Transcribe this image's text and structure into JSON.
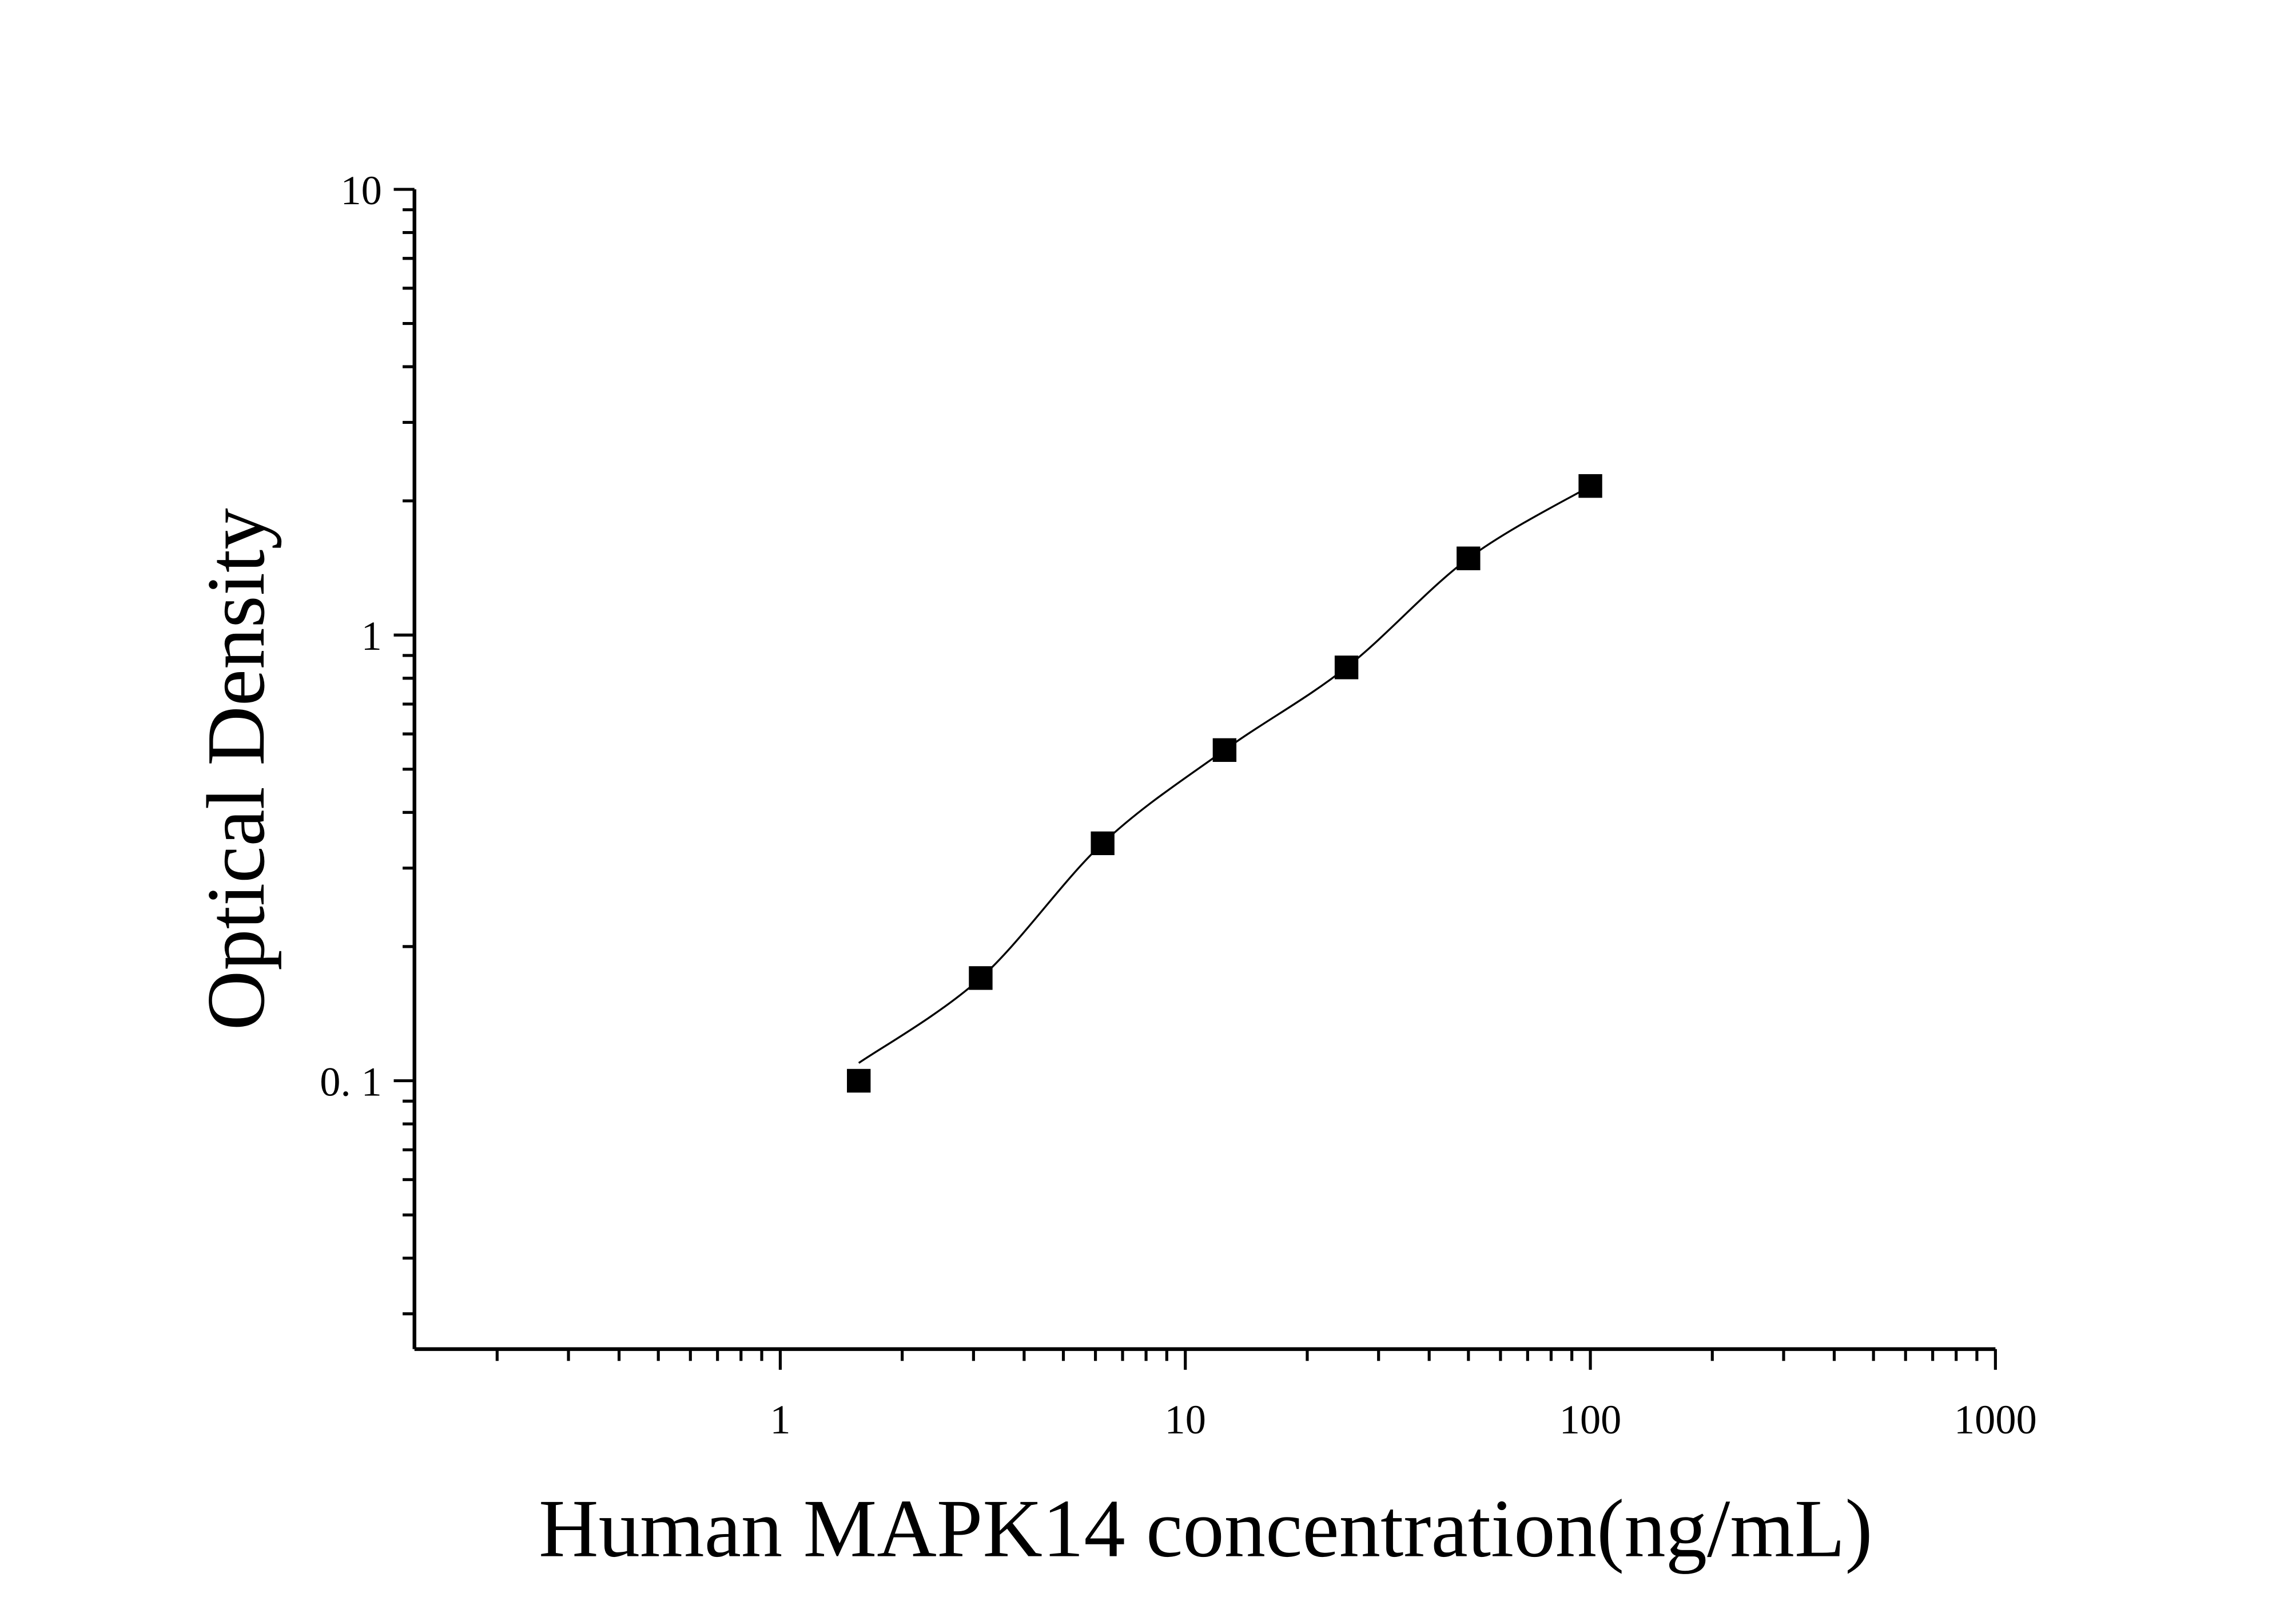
{
  "chart_data": {
    "type": "scatter",
    "title": "",
    "xlabel": "Human MAPK14 concentration(ng/mL)",
    "ylabel": "Optical Density",
    "xscale": "log",
    "yscale": "log",
    "xlim": [
      0.125,
      1000
    ],
    "ylim": [
      0.025,
      10
    ],
    "grid": false,
    "x_ticks": [
      {
        "value": 1,
        "label": "1"
      },
      {
        "value": 10,
        "label": "10"
      },
      {
        "value": 100,
        "label": "100"
      },
      {
        "value": 1000,
        "label": "1000"
      }
    ],
    "y_ticks": [
      {
        "value": 0.1,
        "label": "0. 1"
      },
      {
        "value": 1,
        "label": "1"
      },
      {
        "value": 10,
        "label": "10"
      }
    ],
    "series": [
      {
        "marker": "square",
        "color": "#000000",
        "fit_line": true,
        "x": [
          1.5625,
          3.125,
          6.25,
          12.5,
          25,
          50,
          100
        ],
        "y": [
          0.1,
          0.17,
          0.341,
          0.552,
          0.846,
          1.486,
          2.16
        ]
      }
    ]
  }
}
